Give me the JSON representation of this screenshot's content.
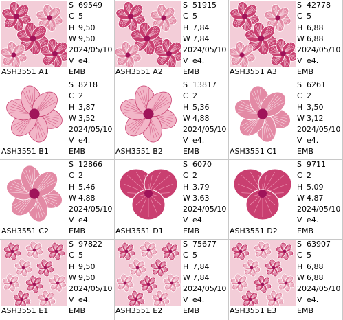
{
  "colors": {
    "light_pink": "#f3cdd8",
    "mid_pink": "#e38aa5",
    "deep_pink": "#c93f70",
    "magenta": "#a0145a",
    "grid": "#c8c8c8"
  },
  "cells": [
    {
      "name": "ASH3551  A1",
      "S": "69549",
      "C": "5",
      "H": "9,50",
      "W": "9,50",
      "date": "2024/05/10",
      "V": "e4.",
      "fmt": "EMB",
      "icon": "floral-pattern-icon"
    },
    {
      "name": "ASH3551  A2",
      "S": "51915",
      "C": "5",
      "H": "7,84",
      "W": "7,84",
      "date": "2024/05/10",
      "V": "e4.",
      "fmt": "EMB",
      "icon": "floral-pattern-icon"
    },
    {
      "name": "ASH3551  A3",
      "S": "42778",
      "C": "5",
      "H": "6,88",
      "W": "6,88",
      "date": "2024/05/10",
      "V": "e4.",
      "fmt": "EMB",
      "icon": "floral-pattern-icon"
    },
    {
      "name": "ASH3551  B1",
      "S": "8218",
      "C": "2",
      "H": "3,87",
      "W": "3,52",
      "date": "2024/05/10",
      "V": "e4.",
      "fmt": "EMB",
      "icon": "light-flower-icon"
    },
    {
      "name": "ASH3551  B2",
      "S": "13817",
      "C": "2",
      "H": "5,36",
      "W": "4,88",
      "date": "2024/05/10",
      "V": "e4.",
      "fmt": "EMB",
      "icon": "light-flower-icon"
    },
    {
      "name": "ASH3551  C1",
      "S": "6261",
      "C": "2",
      "H": "3,50",
      "W": "3,12",
      "date": "2024/05/10",
      "V": "e4.",
      "fmt": "EMB",
      "icon": "pink-flower-icon"
    },
    {
      "name": "ASH3551  C2",
      "S": "12866",
      "C": "2",
      "H": "5,46",
      "W": "4,88",
      "date": "2024/05/10",
      "V": "e4.",
      "fmt": "EMB",
      "icon": "pink-flower-icon"
    },
    {
      "name": "ASH3551  D1",
      "S": "6070",
      "C": "2",
      "H": "3,79",
      "W": "3,63",
      "date": "2024/05/10",
      "V": "e4.",
      "fmt": "EMB",
      "icon": "heart-flower-icon"
    },
    {
      "name": "ASH3551  D2",
      "S": "9711",
      "C": "2",
      "H": "5,09",
      "W": "4,87",
      "date": "2024/05/10",
      "V": "e4.",
      "fmt": "EMB",
      "icon": "heart-flower-icon"
    },
    {
      "name": "ASH3551  E1",
      "S": "97822",
      "C": "5",
      "H": "9,50",
      "W": "9,50",
      "date": "2024/05/10",
      "V": "e4.",
      "fmt": "EMB",
      "icon": "dense-floral-pattern-icon"
    },
    {
      "name": "ASH3551  E2",
      "S": "75677",
      "C": "5",
      "H": "7,84",
      "W": "7,84",
      "date": "2024/05/10",
      "V": "e4.",
      "fmt": "EMB",
      "icon": "dense-floral-pattern-icon"
    },
    {
      "name": "ASH3551  E3",
      "S": "63907",
      "C": "5",
      "H": "6,88",
      "W": "6,88",
      "date": "2024/05/10",
      "V": "e4.",
      "fmt": "EMB",
      "icon": "dense-floral-pattern-icon"
    }
  ]
}
